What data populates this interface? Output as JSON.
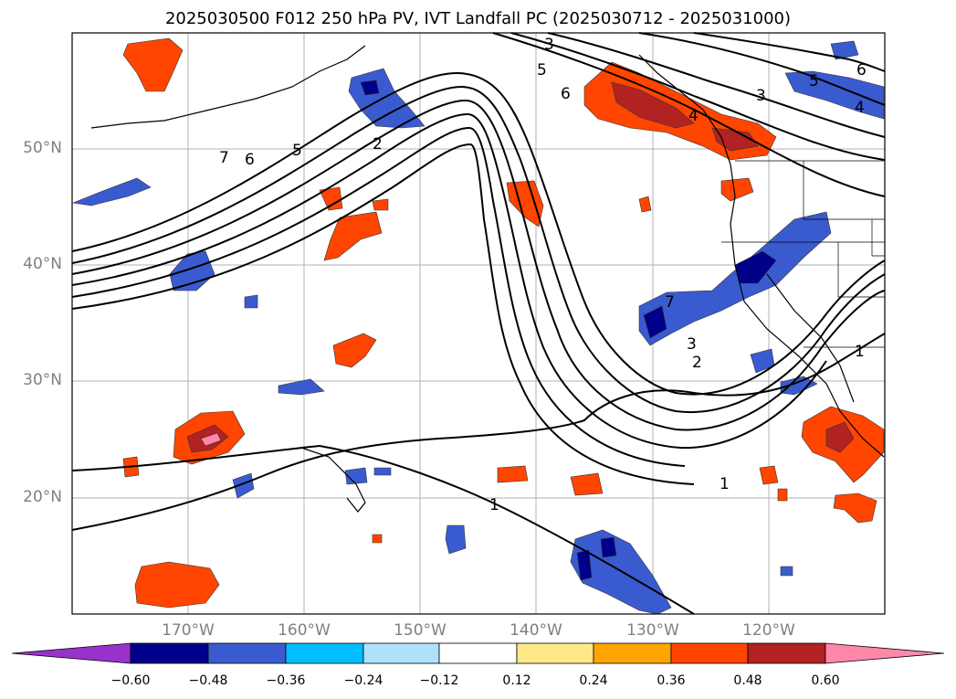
{
  "title": "2025030500 F012 250 hPa PV, IVT Landfall PC (2025030712 - 2025031000)",
  "map": {
    "lat_ticks": [
      "50°N",
      "40°N",
      "30°N",
      "20°N"
    ],
    "lon_ticks": [
      "170°W",
      "160°W",
      "150°W",
      "140°W",
      "130°W",
      "120°W"
    ],
    "contour_labels": [
      "7",
      "6",
      "5",
      "2",
      "5",
      "6",
      "3",
      "4",
      "5",
      "6",
      "3",
      "4",
      "7",
      "3",
      "2",
      "1",
      "1",
      "1"
    ]
  },
  "colorbar": {
    "ticks": [
      "−0.60",
      "−0.48",
      "−0.36",
      "−0.24",
      "−0.12",
      "0.12",
      "0.24",
      "0.36",
      "0.48",
      "0.60"
    ],
    "colors": [
      "#9932cc",
      "#00008b",
      "#3a5bcf",
      "#00bfff",
      "#aee2fa",
      "#ffffff",
      "#ffe88a",
      "#ffa500",
      "#ff4500",
      "#b22222",
      "#ff88aa"
    ]
  }
}
